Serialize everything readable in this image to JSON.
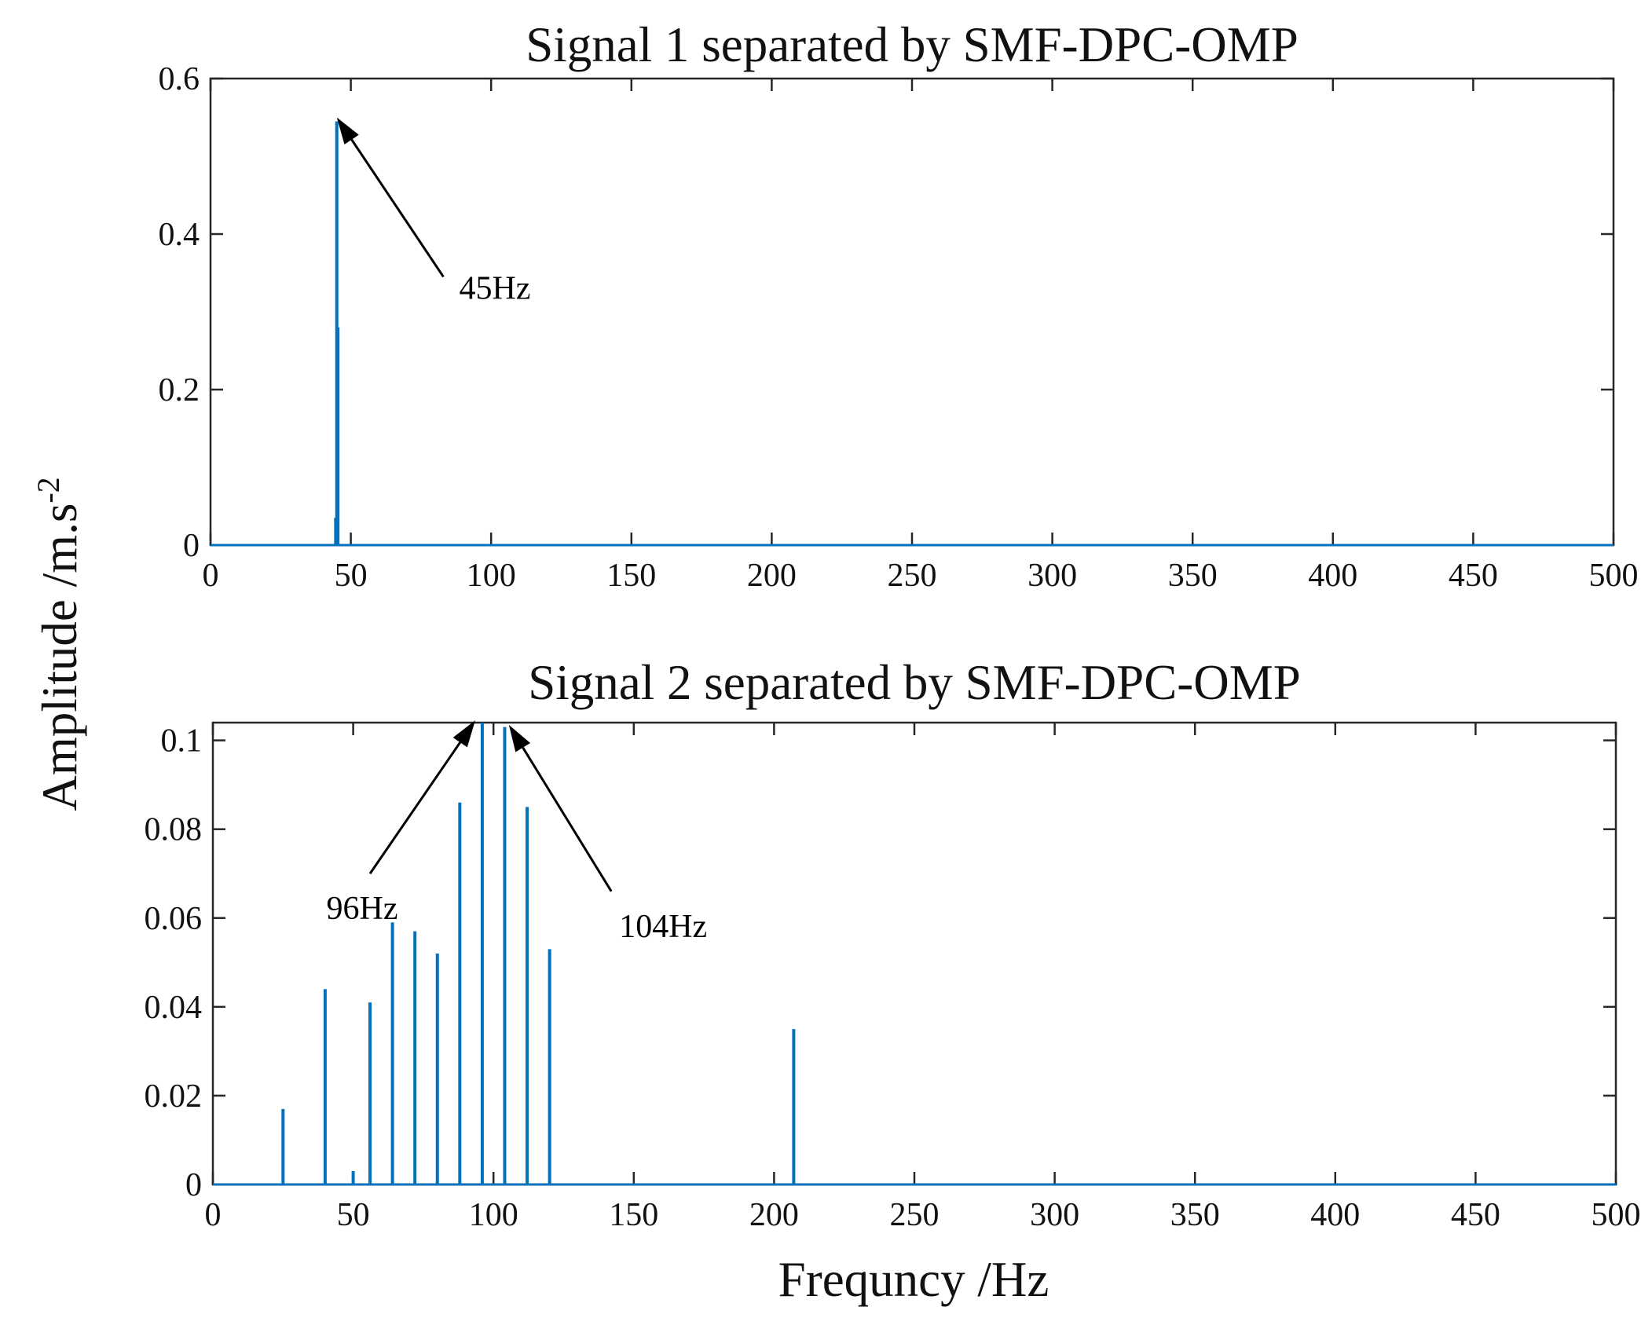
{
  "chart_data": [
    {
      "type": "line",
      "title": "Signal 1 separated by SMF-DPC-OMP",
      "xlabel": "Frequncy /Hz",
      "ylabel": "Amplitude /m.s",
      "ylabel_superscript": "-2",
      "xlim": [
        0,
        500
      ],
      "ylim": [
        0,
        0.6
      ],
      "xticks": [
        0,
        50,
        100,
        150,
        200,
        250,
        300,
        350,
        400,
        450,
        500
      ],
      "yticks": [
        0,
        0.2,
        0.4,
        0.6
      ],
      "ytick_labels": [
        "0",
        "0.2",
        "0.4",
        "0.6"
      ],
      "color": "#0072BD",
      "peaks": [
        {
          "x": 44.6,
          "y": 0.035
        },
        {
          "x": 45,
          "y": 0.545
        },
        {
          "x": 45.4,
          "y": 0.28
        }
      ],
      "annotations": [
        {
          "text": "45Hz",
          "point": [
            45,
            0.55
          ],
          "from": [
            83,
            0.345
          ]
        }
      ]
    },
    {
      "type": "line",
      "title": "Signal 2 separated by SMF-DPC-OMP",
      "xlabel": "Frequncy /Hz",
      "ylabel": "Amplitude /m.s",
      "ylabel_superscript": "-2",
      "xlim": [
        0,
        500
      ],
      "ylim": [
        0,
        0.104
      ],
      "xticks": [
        0,
        50,
        100,
        150,
        200,
        250,
        300,
        350,
        400,
        450,
        500
      ],
      "yticks": [
        0,
        0.02,
        0.04,
        0.06,
        0.08,
        0.1
      ],
      "ytick_labels": [
        "0",
        "0.02",
        "0.04",
        "0.06",
        "0.08",
        "0.1"
      ],
      "color": "#0072BD",
      "peaks": [
        {
          "x": 25,
          "y": 0.017
        },
        {
          "x": 40,
          "y": 0.044
        },
        {
          "x": 50,
          "y": 0.003
        },
        {
          "x": 56,
          "y": 0.041
        },
        {
          "x": 64,
          "y": 0.059
        },
        {
          "x": 72,
          "y": 0.057
        },
        {
          "x": 80,
          "y": 0.052
        },
        {
          "x": 88,
          "y": 0.086
        },
        {
          "x": 96,
          "y": 0.104
        },
        {
          "x": 104,
          "y": 0.103
        },
        {
          "x": 112,
          "y": 0.085
        },
        {
          "x": 120,
          "y": 0.053
        },
        {
          "x": 207,
          "y": 0.035
        }
      ],
      "annotations": [
        {
          "text": "96Hz",
          "point": [
            93.5,
            0.1045
          ],
          "from": [
            56,
            0.07
          ]
        },
        {
          "text": "104Hz",
          "point": [
            105.5,
            0.1035
          ],
          "from": [
            142,
            0.066
          ]
        }
      ]
    }
  ]
}
